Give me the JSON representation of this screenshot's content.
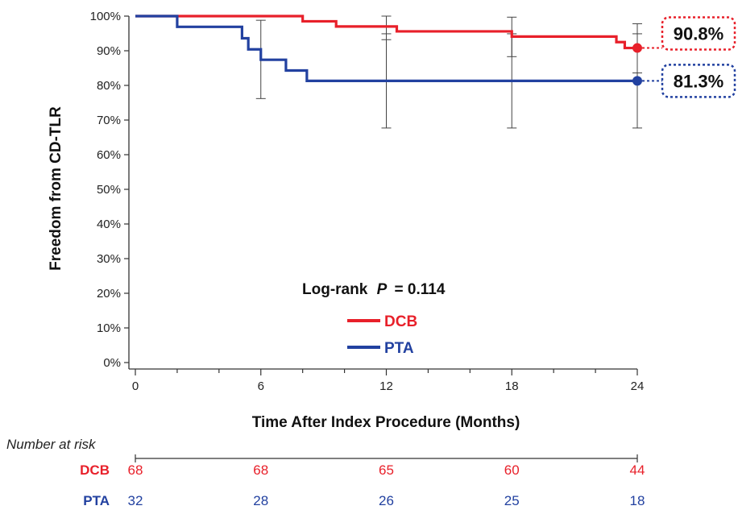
{
  "chart_data": {
    "type": "line",
    "ylabel": "Freedom from CD-TLR",
    "xlabel": "Time After Index Procedure (Months)",
    "xlim": [
      0,
      24
    ],
    "ylim": [
      0,
      100
    ],
    "x_ticks": [
      "0",
      "6",
      "12",
      "18",
      "24"
    ],
    "y_ticks": [
      "0%",
      "10%",
      "20%",
      "30%",
      "40%",
      "50%",
      "60%",
      "70%",
      "80%",
      "90%",
      "100%"
    ],
    "annotation": {
      "text": "Log-rank",
      "p_symbol": "P",
      "p_value": "= 0.114"
    },
    "legend_placement": "center-bottom",
    "series": [
      {
        "name": "DCB",
        "color": "#e8202a",
        "steps": [
          [
            0,
            100
          ],
          [
            8,
            98.5
          ],
          [
            9.6,
            97
          ],
          [
            12.5,
            95.6
          ],
          [
            18,
            94.1
          ],
          [
            23,
            92.5
          ],
          [
            23.4,
            90.8
          ],
          [
            24,
            90.8
          ]
        ],
        "error_bars": [
          {
            "x": 12,
            "low": 93.2,
            "high": 100
          },
          {
            "x": 18,
            "low": 88.3,
            "high": 99.7
          },
          {
            "x": 24,
            "low": 83.6,
            "high": 97.8
          }
        ],
        "end_label": "90.8%",
        "end_value": 90.8
      },
      {
        "name": "PTA",
        "color": "#2241a0",
        "steps": [
          [
            0,
            100
          ],
          [
            2,
            96.9
          ],
          [
            5.1,
            93.6
          ],
          [
            5.4,
            90.4
          ],
          [
            6,
            87.4
          ],
          [
            7.2,
            84.3
          ],
          [
            8.2,
            81.3
          ],
          [
            24,
            81.3
          ]
        ],
        "error_bars": [
          {
            "x": 6,
            "low": 76.2,
            "high": 98.8
          },
          {
            "x": 12,
            "low": 67.7,
            "high": 94.9
          },
          {
            "x": 18,
            "low": 67.7,
            "high": 94.9
          },
          {
            "x": 24,
            "low": 67.7,
            "high": 94.9
          }
        ],
        "end_label": "81.3%",
        "end_value": 81.3
      }
    ],
    "risk_table": {
      "title": "Number at risk",
      "rows": [
        {
          "label": "DCB",
          "color": "#e8202a",
          "values": [
            "68",
            "68",
            "65",
            "60",
            "44"
          ]
        },
        {
          "label": "PTA",
          "color": "#2241a0",
          "values": [
            "32",
            "28",
            "26",
            "25",
            "18"
          ]
        }
      ]
    }
  }
}
